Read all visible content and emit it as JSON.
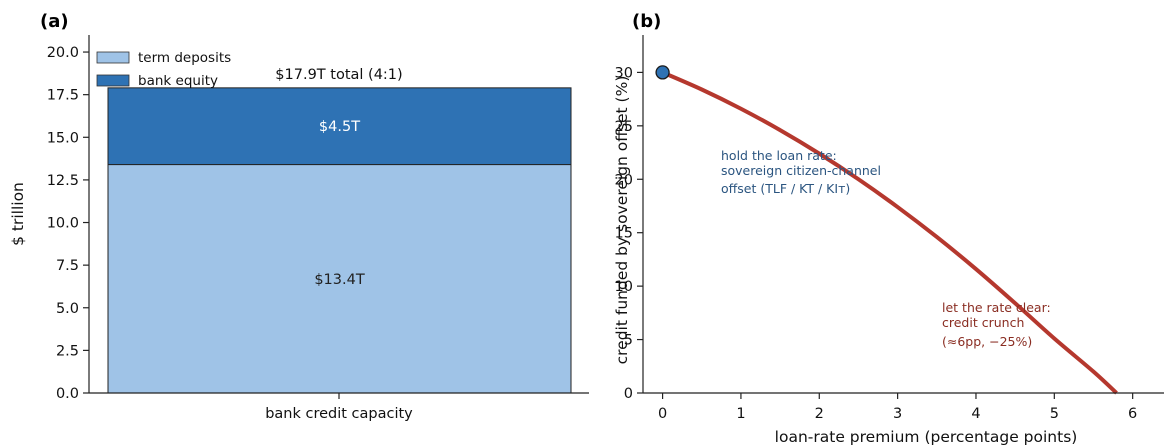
{
  "chart_data": [
    {
      "type": "bar",
      "panel": "(a)",
      "categories": [
        "bank credit capacity"
      ],
      "series": [
        {
          "name": "term deposits",
          "values": [
            13.4
          ],
          "color": "#9fc3e7",
          "label": "$13.4T"
        },
        {
          "name": "bank equity",
          "values": [
            4.5
          ],
          "color": "#2e72b4",
          "label": "$4.5T"
        }
      ],
      "total_label": "$17.9T total (4:1)",
      "total": 17.9,
      "xlabel": "bank credit capacity",
      "ylabel": "$ trillion",
      "ylim": [
        0,
        21
      ],
      "yticks": [
        "0.0",
        "2.5",
        "5.0",
        "7.5",
        "10.0",
        "12.5",
        "15.0",
        "17.5",
        "20.0"
      ],
      "legend_position": "top-left",
      "grid": false
    },
    {
      "type": "line",
      "panel": "(b)",
      "series": [
        {
          "color": "#b5382e",
          "x": [
            0,
            0.5,
            1,
            1.5,
            2,
            2.5,
            3,
            3.5,
            4,
            4.5,
            5,
            5.5,
            6,
            6.4
          ],
          "y": [
            30,
            28.4,
            26.6,
            24.6,
            22.4,
            20.0,
            17.4,
            14.6,
            11.6,
            8.4,
            5.1,
            2.0,
            -1.4,
            -4.2
          ]
        }
      ],
      "marker": {
        "x": 0,
        "y": 30,
        "color": "#2e72b4"
      },
      "annotations": [
        {
          "lines": [
            "hold the loan rate:",
            "sovereign citizen-channel",
            "offset (TLF / KT / KIᴛ)"
          ],
          "color": "#2b5580"
        },
        {
          "lines": [
            "let the rate clear:",
            "credit crunch",
            "(≈6pp, −25%)"
          ],
          "color": "#8a2d22"
        }
      ],
      "xlabel": "loan-rate premium (percentage points)",
      "ylabel": "credit funded by sovereign offset (%)",
      "xlim": [
        -0.25,
        6.4
      ],
      "ylim": [
        0,
        33.5
      ],
      "xticks": [
        "0",
        "1",
        "2",
        "3",
        "4",
        "5",
        "6"
      ],
      "yticks": [
        "0",
        "5",
        "10",
        "15",
        "20",
        "25",
        "30"
      ],
      "grid": false
    }
  ]
}
